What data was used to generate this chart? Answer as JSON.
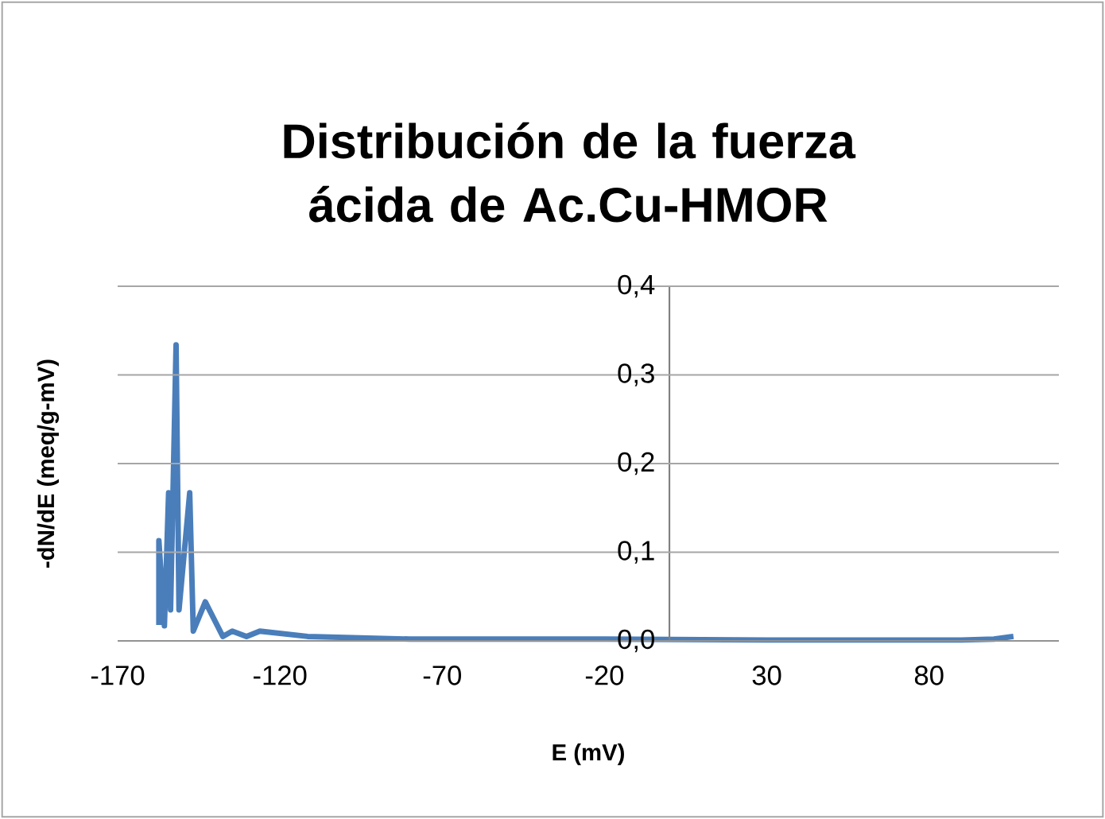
{
  "chart_data": {
    "type": "line",
    "title": "Distribución de la fuerza ácida de Ac.Cu-HMOR",
    "xlabel": "E (mV)",
    "ylabel": "-dN/dE (meq/g-mV)",
    "x": [
      -157.3,
      -157.3,
      -155.6,
      -154.3,
      -153.7,
      -152.0,
      -151.1,
      -147.8,
      -146.7,
      -143.0,
      -137.6,
      -134.7,
      -130.3,
      -126.2,
      -111.5,
      -80,
      -20,
      30,
      90,
      100,
      106
    ],
    "values": [
      0.018,
      0.113,
      0.017,
      0.167,
      0.035,
      0.334,
      0.035,
      0.167,
      0.011,
      0.044,
      0.005,
      0.011,
      0.005,
      0.011,
      0.005,
      0.002,
      0.002,
      0.001,
      0.001,
      0.002,
      0.005
    ],
    "color": "#4a7ebb",
    "xlim": [
      -170,
      120
    ],
    "ylim": [
      0,
      0.4
    ],
    "xticks": [
      -170,
      -120,
      -70,
      -20,
      30,
      80
    ],
    "yticks": [
      {
        "value": 0,
        "label": "0,0"
      },
      {
        "value": 0.1,
        "label": "0,1"
      },
      {
        "value": 0.2,
        "label": "0,2"
      },
      {
        "value": 0.3,
        "label": "0,3"
      },
      {
        "value": 0.4,
        "label": "0,4"
      }
    ],
    "grid": "y"
  }
}
